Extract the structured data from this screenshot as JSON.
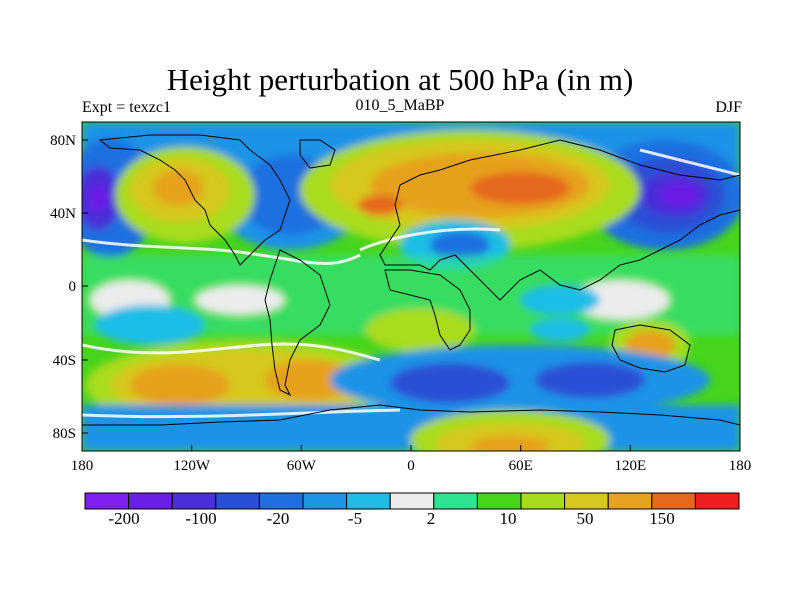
{
  "title": "Height perturbation at 500 hPa (in m)",
  "subtitle_left": "Expt = texzc1",
  "subtitle_center": "010_5_MaBP",
  "subtitle_right": "DJF",
  "axes": {
    "x_ticks": [
      "180",
      "120W",
      "60W",
      "0",
      "60E",
      "120E",
      "180"
    ],
    "y_ticks": [
      "80N",
      "40N",
      "0",
      "40S",
      "80S"
    ]
  },
  "colorbar": {
    "colors": [
      "#7f1ff2",
      "#6a1fe6",
      "#4a2fd8",
      "#2a4fd6",
      "#1f6fe0",
      "#1f93e6",
      "#1fbde6",
      "#ececec",
      "#2ee38f",
      "#46d41c",
      "#a8dc1a",
      "#d6c81e",
      "#e6a11e",
      "#e6681e",
      "#ee1e1e"
    ],
    "labels": [
      "-200",
      "-100",
      "-20",
      "-5",
      "2",
      "10",
      "50",
      "150"
    ]
  }
}
